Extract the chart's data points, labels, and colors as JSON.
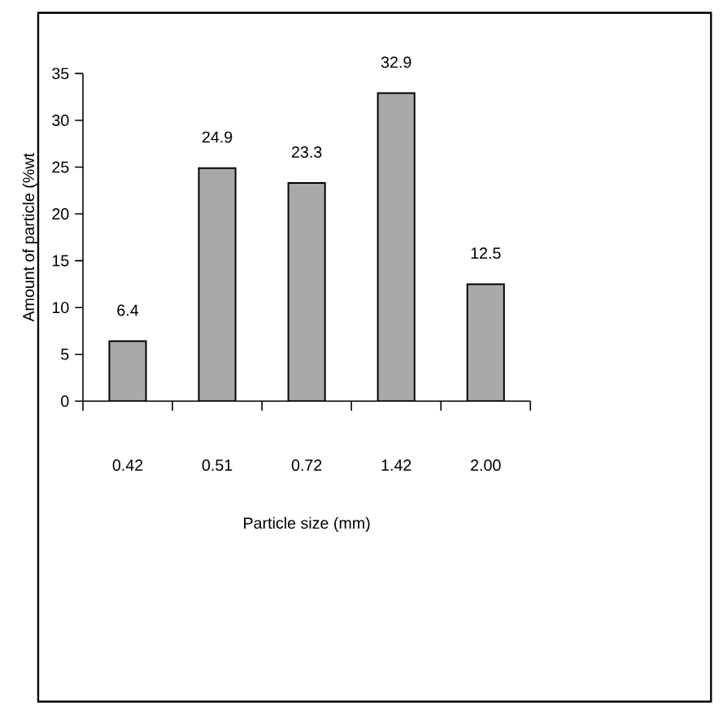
{
  "chart_data": {
    "type": "bar",
    "xlabel": "Particle size (mm)",
    "ylabel": "Amount of particle (%wt",
    "categories": [
      "0.42",
      "0.51",
      "0.72",
      "1.42",
      "2.00"
    ],
    "values": [
      6.4,
      24.9,
      23.3,
      32.9,
      12.5
    ],
    "color": "#a9a9a9",
    "ylim": [
      0,
      35
    ],
    "yticks": [
      0,
      5,
      10,
      15,
      20,
      25,
      30,
      35
    ],
    "data_labels": true
  }
}
